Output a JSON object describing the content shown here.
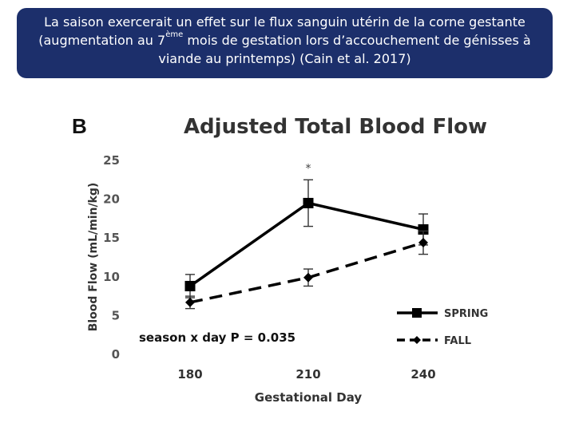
{
  "banner": {
    "line1": "La saison exercerait un effet sur le flux sanguin utérin de la corne gestante",
    "line2_a": "(augmentation au 7",
    "line2_sup": "ème",
    "line2_b": " mois de gestation lors d’accouchement de génisses à",
    "line3": "viande au printemps) (Cain et al. 2017)"
  },
  "chart_data": {
    "type": "line",
    "panel_label": "B",
    "title": "Adjusted Total Blood Flow",
    "xlabel": "Gestational Day",
    "ylabel": "Blood Flow (mL/min/kg)",
    "categories": [
      "180",
      "210",
      "240"
    ],
    "ylim": [
      0,
      25
    ],
    "yticks": [
      0,
      5,
      10,
      15,
      20,
      25
    ],
    "annotation": "season x day P = 0.035",
    "significance_marker": {
      "category": "210",
      "label": "*"
    },
    "series": [
      {
        "name": "SPRING",
        "values": [
          8.7,
          19.4,
          16.0
        ],
        "errors": [
          1.5,
          3.0,
          2.0
        ],
        "line": "solid",
        "marker": "square",
        "color": "#000000"
      },
      {
        "name": "FALL",
        "values": [
          6.6,
          9.8,
          14.3
        ],
        "errors": [
          0.8,
          1.1,
          1.5
        ],
        "line": "dashed",
        "marker": "diamond",
        "color": "#000000"
      }
    ]
  }
}
